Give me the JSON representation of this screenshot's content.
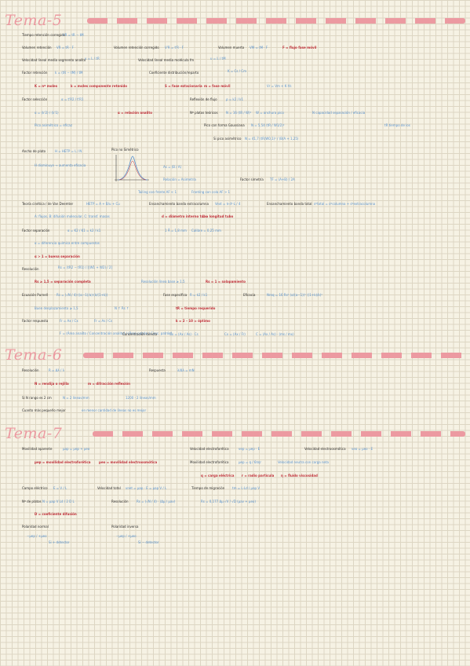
{
  "colors": {
    "paper": "#f6f2e4",
    "grid": "#ddd6c3",
    "heading": "#ec9aa1",
    "blue_ink": "#5a93cf",
    "red_ink": "#c0303a",
    "dark_ink": "#2b2b2b"
  },
  "headings": {
    "tema5": "Tema-5",
    "tema6": "Tema-6",
    "tema7": "Tema-7"
  },
  "t5": {
    "tiempo_label": "Tiempo retención corregido",
    "tiempo_formula": "t'R = tR − tM",
    "vret_label": "Volumen retención",
    "vret_formula": "VR = tR · F",
    "vretc_label": "Volumen retención corregido",
    "vretc_formula": "V'R = t'R · F",
    "vmuerto_label": "Volumen muerto",
    "vmuerto_formula": "VM = tM · F",
    "flujo_note": "F = flujo fase móvil",
    "vlin_label": "Velocidad lineal media segmento analito",
    "vlin_formula": "v = L / tR",
    "vlinfm_label": "Velocidad lineal media molécula fm",
    "vlinfm_formula": "u = L / tM",
    "factor_label": "Factor retención",
    "factor_formula": "k = (tR − tM) / tM",
    "coef_label": "Coeficiente distribución/reparto",
    "coef_formula": "K = Cs / Cm",
    "vol_formula": "Vr = Vm + K·Vs",
    "kdef": "K = nº moles",
    "kdef2": "k = moles componente retenido",
    "fase_est": "S = fase estacionaria",
    "fase_mov": "m = fase móvil",
    "sel_label": "Factor selección",
    "sel_formula": "α = t'R2 / t'R1",
    "refl_label": "Reflexión de flujo",
    "refl_formula": "ρ = k2 / k1",
    "alfa_formula": "α = (k'2) / (k'1)",
    "alfa_note": "α = relación analito",
    "platos_label": "Nº platos teóricos",
    "platos_formula": "N = 16 (tR / W)²",
    "w_note": "W = anchura pico",
    "sep_note": "N capacidad separación / eficacia",
    "pico_label": "Pico con forma Gaussiana",
    "pico_formula": "N = 5,54 (tR / W1/2)²",
    "pico_note": "Pico asimétrico = eficaz",
    "pico_note2": "tR tiempo de los",
    "pico_note3": "Si pico asimétrico",
    "pico_f2": "N = 41,7 (tR/W0,1)² / (B/A + 1,25)",
    "ancho_label": "Ancho de plato",
    "ancho_formula": "H = HETP = L / N",
    "ancho_note": "H disminuye → aumenta eficacia",
    "aasym_label": "Pico no Simétrico",
    "asym_formula": "As = (B / A)",
    "altura_note": "Relación = Asimetría",
    "factor_simetria": "Factor simetría",
    "factor_simetria_f": "TF = (A+B) / 2A",
    "tailing": "Tailing con frente AF < 1",
    "fronting": "Fronting con cola AF > 1",
    "vandeemter_label": "Teoría cinética / de Van Deemter",
    "vandeemter_formula": "HETP = A + B/u + Cu",
    "vd_note": "A: flujos, B: difusión molecular, C: transf. masas",
    "ens_label": "Ensanchamiento banda extracolumna",
    "ens_formula": "Vext = π·d²·L / 4",
    "ens_note": "d = diámetro interno tubo",
    "ens_note2": "L = longitud tubo",
    "ens_total_label": "Ensanchamiento banda total",
    "ens_total_formula": "σ²total = σ²columna + σ²extracolumna",
    "ens_total_note": "Flujo ensanchamiento banda volumen",
    "res_label": "Factor separación",
    "res_formula": "α = K2 / K1 = k2 / k1",
    "res_note": "α = diferencia química entre compuestos",
    "res_note2": "α > 1 = buena separación",
    "cal_note": "1 Å = 1,8 mm",
    "cal_note2": "Calibre = 0,25 mm",
    "resol_label": "Resolución",
    "resol_formula": "Rs = (tR2 − tR1) / [(W1 + W2) / 2]",
    "resol_note": "Rs ≥ 1,5 = separación completa",
    "resol_note2": "Resolución línea base ≥ 1,5",
    "resol_note3": "Rs = 1 = solapamiento",
    "purnell_label": "Ecuación Purnell",
    "purnell_formula": "Rs = (√N / 4)·((α−1)/α)·(k/(1+k))",
    "purnell_note": "Buen desplazamiento ≥ 1,5",
    "purnell_note2": "N ↑ Rs ↑",
    "eff_label": "Eficacia",
    "eff_note": "k ↑ = tiempo separación",
    "eff_formula": "k → ∞",
    "eff_note2": "k = 2 – 10 = óptimo",
    "fase_esp": "Fase específica",
    "fase_f": "R = k2 / k1",
    "platos_nreq": "Nreq = 16 Rs² (α/(α−1))² ((1+k)/k)²",
    "tr_note": "tR = tiempo requerido",
    "factor_resp_label": "Factor respuesta",
    "factor_resp_formula": "F = (Área analito / Concentración analito) / (Área patrón / Conc. patrón)",
    "fr_note2": "Fr = Ax / Cx",
    "fr_note3": "Fr = As / Cs",
    "conc_label": "Concentración directa",
    "conc_formula": "Cx = (Ax / As) · Cs",
    "conc_f2": "Cx = (Ax / Fr)",
    "conc_f3": "C = (Ax / As) · (ms / mx)",
    "sol_note": "Solución patrón"
  },
  "t6": {
    "resol_label": "Resolución",
    "resol_formula": "R = Δλ / λ",
    "respuesta_label": "Respuesta",
    "respuesta_formula": "λ/Δλ = mN",
    "n_note": "N = rendija o rejilla",
    "m_note": "m = difracción reflexión",
    "ss_label": "Si N rango es 2 cm",
    "ss_formula": "N = 2 líneas/mm",
    "ss_note2": "1200 · 2 líneas/mm",
    "casos_label": "Cuanto más pequeño mejor",
    "casos_note": "en menor cantidad de líneas no es mejor"
  },
  "t7": {
    "mov_label": "Movilidad aparente",
    "mov_formula": "μap = μep + μeo",
    "mov_note": "μep = movilidad electroforética",
    "mov_note2": "μeo = movilidad electroosmótica",
    "vel_label": "Velocidad electroforética",
    "vel_formula": "vep = μep · E",
    "velos_label": "Velocidad electroosmótica",
    "velos_formula": "veo = μeo · E",
    "mob_label": "Movilidad electroforética",
    "mob_formula": "μep = q / 6πηr",
    "mob_note": "Velocidad neutra con carga neta",
    "q_note": "q = carga eléctrica",
    "r_note": "r = radio partícula",
    "eta_note": "η = fluido viscosidad",
    "campo_label": "Campo eléctrico",
    "campo_formula": "E = V / L",
    "vel_total_label": "Velocidad total",
    "vel_total_formula": "vnet = μap · E = μap V / L",
    "tm_label": "Tiempo de migración",
    "tm_formula": "tm = L·Ld / μap V",
    "np_label": "Nº de platos",
    "np_formula": "N = μap V Ld / 2 D L",
    "resol_label": "Resolución",
    "resol_formula": "Rs = (√N / 4) · (Δμ / μav)",
    "resol_f2": "Rs = 0,177 Δμ √V / √D (μav + μeo)",
    "d_note": "D = coeficiente difusión",
    "pol_label": "Polaridad normal",
    "pol_formula": "−μep / +μeo",
    "pol_note": "Si + detector",
    "inv_label": "Polaridad inversa",
    "inv_formula": "−μep / +μeo",
    "inv_note": "Si − detector"
  },
  "icons": [
    "gaussian-peak-icon"
  ]
}
